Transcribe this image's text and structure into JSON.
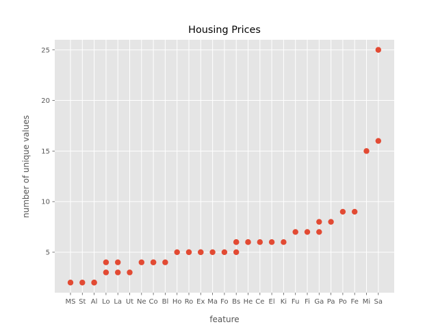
{
  "chart_data": {
    "type": "scatter",
    "title": "Housing Prices",
    "xlabel": "feature",
    "ylabel": "number of unique values",
    "categories": [
      "MS",
      "St",
      "Al",
      "Lo",
      "La",
      "Ut",
      "Ne",
      "Co",
      "Bl",
      "Ho",
      "Ro",
      "Ex",
      "Ma",
      "Fo",
      "Bs",
      "He",
      "Ce",
      "El",
      "Ki",
      "Fu",
      "Fi",
      "Ga",
      "Pa",
      "Po",
      "Fe",
      "Mi",
      "Sa"
    ],
    "ylim": [
      1,
      26
    ],
    "yticks": [
      5,
      10,
      15,
      20,
      25
    ],
    "grid": true,
    "points": [
      {
        "x": "MS",
        "y": 2
      },
      {
        "x": "St",
        "y": 2
      },
      {
        "x": "Al",
        "y": 2
      },
      {
        "x": "Al",
        "y": 2
      },
      {
        "x": "Lo",
        "y": 4
      },
      {
        "x": "Lo",
        "y": 3
      },
      {
        "x": "La",
        "y": 4
      },
      {
        "x": "La",
        "y": 3
      },
      {
        "x": "Ut",
        "y": 3
      },
      {
        "x": "Ne",
        "y": 4
      },
      {
        "x": "Co",
        "y": 4
      },
      {
        "x": "Co",
        "y": 4
      },
      {
        "x": "Bl",
        "y": 4
      },
      {
        "x": "Ho",
        "y": 5
      },
      {
        "x": "Ro",
        "y": 5
      },
      {
        "x": "Ro",
        "y": 5
      },
      {
        "x": "Ex",
        "y": 5
      },
      {
        "x": "Ex",
        "y": 5
      },
      {
        "x": "Ma",
        "y": 5
      },
      {
        "x": "Fo",
        "y": 5
      },
      {
        "x": "Bs",
        "y": 6
      },
      {
        "x": "Bs",
        "y": 6
      },
      {
        "x": "Bs",
        "y": 5
      },
      {
        "x": "He",
        "y": 6
      },
      {
        "x": "He",
        "y": 6
      },
      {
        "x": "Ce",
        "y": 6
      },
      {
        "x": "El",
        "y": 6
      },
      {
        "x": "Ki",
        "y": 6
      },
      {
        "x": "Fu",
        "y": 7
      },
      {
        "x": "Fi",
        "y": 7
      },
      {
        "x": "Ga",
        "y": 8
      },
      {
        "x": "Ga",
        "y": 7
      },
      {
        "x": "Pa",
        "y": 8
      },
      {
        "x": "Po",
        "y": 9
      },
      {
        "x": "Fe",
        "y": 9
      },
      {
        "x": "Mi",
        "y": 15
      },
      {
        "x": "Sa",
        "y": 25
      },
      {
        "x": "Sa",
        "y": 16
      }
    ],
    "colors": {
      "marker": "#E24A33",
      "plot_background": "#E5E5E5",
      "grid": "#FFFFFF"
    }
  }
}
